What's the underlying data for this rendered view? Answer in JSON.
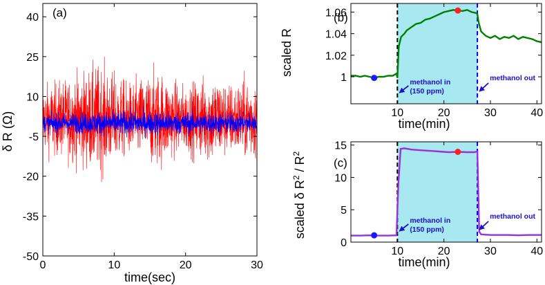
{
  "chart_data": [
    {
      "panel": "(a)",
      "type": "line",
      "xlabel": "time(sec)",
      "ylabel": "δ R (Ω)",
      "xlim": [
        0,
        30
      ],
      "ylim": [
        -50,
        45
      ],
      "xticks": [
        0,
        10,
        20,
        30
      ],
      "yticks": [
        -50,
        -35,
        -20,
        -5,
        10,
        25,
        40
      ],
      "series": [
        {
          "name": "red trace",
          "color": "#ff0000",
          "mean": 1.5,
          "amplitude_envelope": [
            [
              0,
              22
            ],
            [
              3,
              26
            ],
            [
              6,
              32
            ],
            [
              8,
              36
            ],
            [
              10,
              30
            ],
            [
              12,
              24
            ],
            [
              14,
              28
            ],
            [
              16,
              33
            ],
            [
              18,
              26
            ],
            [
              20,
              22
            ],
            [
              22,
              27
            ],
            [
              24,
              30
            ],
            [
              26,
              24
            ],
            [
              28,
              26
            ],
            [
              30,
              28
            ]
          ]
        },
        {
          "name": "blue trace",
          "color": "#0000ff",
          "mean": 0,
          "amplitude_envelope": [
            [
              0,
              6
            ],
            [
              5,
              7
            ],
            [
              10,
              8
            ],
            [
              15,
              8
            ],
            [
              20,
              7.5
            ],
            [
              25,
              7
            ],
            [
              30,
              7
            ]
          ]
        }
      ]
    },
    {
      "panel": "(b)",
      "type": "line",
      "xlabel": "time(min)",
      "ylabel": "scaled R",
      "xlim": [
        0,
        41
      ],
      "ylim": [
        0.975,
        1.068
      ],
      "xticks": [
        10,
        20,
        30,
        40
      ],
      "yticks": [
        1,
        1.02,
        1.04,
        1.06
      ],
      "shaded_region": [
        10,
        27.2
      ],
      "vlines": [
        {
          "x": 10,
          "color": "#000000"
        },
        {
          "x": 27.2,
          "color": "#0000ff"
        }
      ],
      "series": [
        {
          "name": "scaled R",
          "color": "#008000",
          "x": [
            0,
            1,
            2,
            3,
            4,
            5,
            6,
            7,
            8,
            9,
            9.8,
            10,
            10.3,
            10.8,
            11.5,
            12,
            13,
            14,
            15,
            16,
            17,
            18,
            19,
            20,
            21,
            22,
            23,
            24,
            25,
            26,
            27,
            27.2,
            27.5,
            28,
            29,
            30,
            31,
            32,
            33,
            34,
            35,
            36,
            37,
            38,
            39,
            40,
            41
          ],
          "y": [
            1.001,
            1.001,
            1.0,
            1.001,
            1.0,
            0.999,
            1.0,
            1.0,
            1.001,
            1.001,
            1.003,
            0.999,
            1.028,
            1.037,
            1.04,
            1.043,
            1.046,
            1.049,
            1.05,
            1.053,
            1.054,
            1.056,
            1.058,
            1.06,
            1.061,
            1.062,
            1.0615,
            1.061,
            1.062,
            1.06,
            1.059,
            1.058,
            1.05,
            1.042,
            1.038,
            1.036,
            1.038,
            1.035,
            1.037,
            1.036,
            1.038,
            1.035,
            1.037,
            1.036,
            1.035,
            1.033,
            1.032
          ]
        }
      ],
      "markers": [
        {
          "x": 5,
          "y": 0.999,
          "color": "#1a1aff"
        },
        {
          "x": 23,
          "y": 1.0615,
          "color": "#ff2020"
        }
      ],
      "annotations": [
        {
          "text_lines": [
            "methanol in",
            "(150 ppm)"
          ],
          "arrow_to": 10
        },
        {
          "text_lines": [
            "methanol out"
          ],
          "arrow_to": 27.2
        }
      ]
    },
    {
      "panel": "(c)",
      "type": "line",
      "xlabel": "time(min)",
      "ylabel_main": "scaled δ R",
      "ylabel_exp": "2",
      "ylabel_sep": " / R",
      "ylabel_exp2": "2",
      "xlim": [
        0,
        41
      ],
      "ylim": [
        0,
        15.5
      ],
      "xticks": [
        10,
        20,
        30,
        40
      ],
      "yticks": [
        0,
        5,
        10,
        15
      ],
      "shaded_region": [
        10,
        27.2
      ],
      "vlines": [
        {
          "x": 10,
          "color": "#000000"
        },
        {
          "x": 27.2,
          "color": "#0000ff"
        }
      ],
      "series": [
        {
          "name": "scaled noise",
          "color": "#9b30d9",
          "x": [
            0,
            2,
            4,
            6,
            8,
            9.8,
            10.2,
            10.7,
            11.5,
            13,
            15,
            17,
            19,
            21,
            23,
            25,
            26.5,
            27.2,
            27.6,
            28,
            30,
            32,
            34,
            36,
            38,
            41
          ],
          "y": [
            1.0,
            1.0,
            1.05,
            1.0,
            1.0,
            1.05,
            9.0,
            14.4,
            14.5,
            14.3,
            14.2,
            14.1,
            14.0,
            13.9,
            13.95,
            13.9,
            13.9,
            14.0,
            1.6,
            1.2,
            1.1,
            1.1,
            1.1,
            1.05,
            1.1,
            1.1
          ]
        }
      ],
      "markers": [
        {
          "x": 5,
          "y": 1.05,
          "color": "#1a1aff"
        },
        {
          "x": 23,
          "y": 13.95,
          "color": "#ff2020"
        }
      ],
      "annotations": [
        {
          "text_lines": [
            "methanol in",
            "(150 ppm)"
          ],
          "arrow_to": 10
        },
        {
          "text_lines": [
            "methanol out"
          ],
          "arrow_to": 27.2
        }
      ]
    }
  ]
}
